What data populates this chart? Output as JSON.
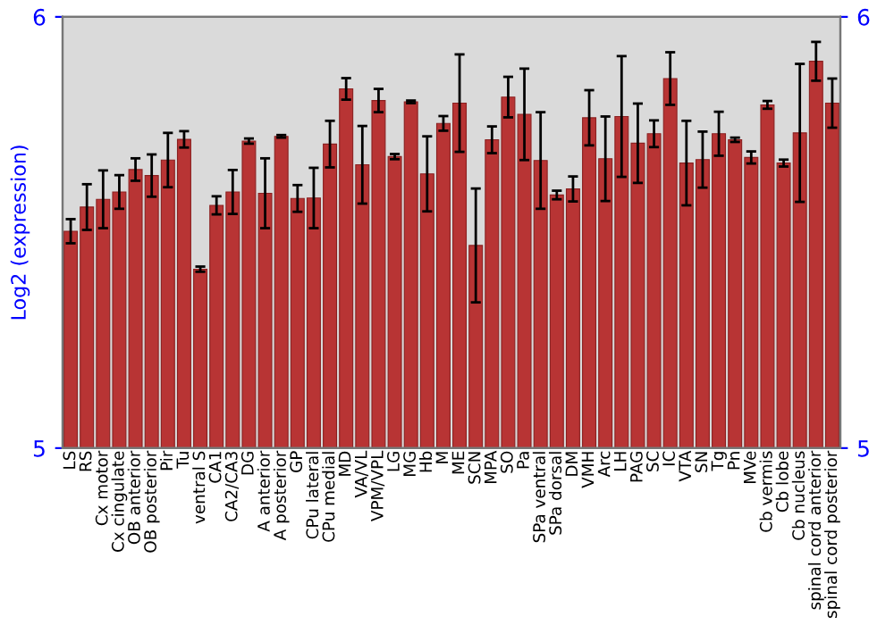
{
  "chart_data": {
    "type": "bar",
    "ylabel": "Log2 (expression)",
    "categories": [
      "LS",
      "RS",
      "Cx motor",
      "Cx cingulate",
      "OB anterior",
      "OB posterior",
      "Pir",
      "Tu",
      "ventral S",
      "CA1",
      "CA2/CA3",
      "DG",
      "A anterior",
      "A posterior",
      "GP",
      "CPu lateral",
      "CPu medial",
      "MD",
      "VA/VL",
      "VPM/VPL",
      "LG",
      "MG",
      "Hb",
      "M",
      "ME",
      "SCN",
      "MPA",
      "SO",
      "Pa",
      "SPa ventral",
      "SPa dorsal",
      "DM",
      "VMH",
      "Arc",
      "LH",
      "PAG",
      "SC",
      "IC",
      "VTA",
      "SN",
      "Tg",
      "Pn",
      "MVe",
      "Cb vermis",
      "Cb lobe",
      "Cb nucleus",
      "spinal cord anterior",
      "spinal cord posterior"
    ],
    "values": [
      5.503,
      5.559,
      5.577,
      5.594,
      5.646,
      5.632,
      5.668,
      5.716,
      5.415,
      5.563,
      5.594,
      5.712,
      5.591,
      5.723,
      5.579,
      5.58,
      5.705,
      5.833,
      5.657,
      5.806,
      5.676,
      5.803,
      5.636,
      5.753,
      5.8,
      5.47,
      5.715,
      5.814,
      5.774,
      5.667,
      5.587,
      5.601,
      5.766,
      5.671,
      5.769,
      5.707,
      5.729,
      5.857,
      5.661,
      5.669,
      5.729,
      5.715,
      5.674,
      5.796,
      5.661,
      5.731,
      5.897,
      5.8
    ],
    "errors": [
      0.028,
      0.053,
      0.067,
      0.039,
      0.026,
      0.049,
      0.063,
      0.019,
      0.006,
      0.021,
      0.051,
      0.006,
      0.081,
      0.003,
      0.031,
      0.07,
      0.054,
      0.025,
      0.09,
      0.027,
      0.006,
      0.003,
      0.087,
      0.017,
      0.113,
      0.132,
      0.031,
      0.047,
      0.106,
      0.112,
      0.01,
      0.029,
      0.064,
      0.098,
      0.14,
      0.092,
      0.031,
      0.061,
      0.098,
      0.065,
      0.051,
      0.005,
      0.014,
      0.009,
      0.008,
      0.16,
      0.045,
      0.057
    ],
    "color": "#b83434",
    "ylim": [
      5,
      6
    ],
    "yticks": [
      5,
      6
    ],
    "y2lim": [
      5,
      6
    ],
    "y2ticks": [
      5,
      6
    ],
    "grid": false
  }
}
